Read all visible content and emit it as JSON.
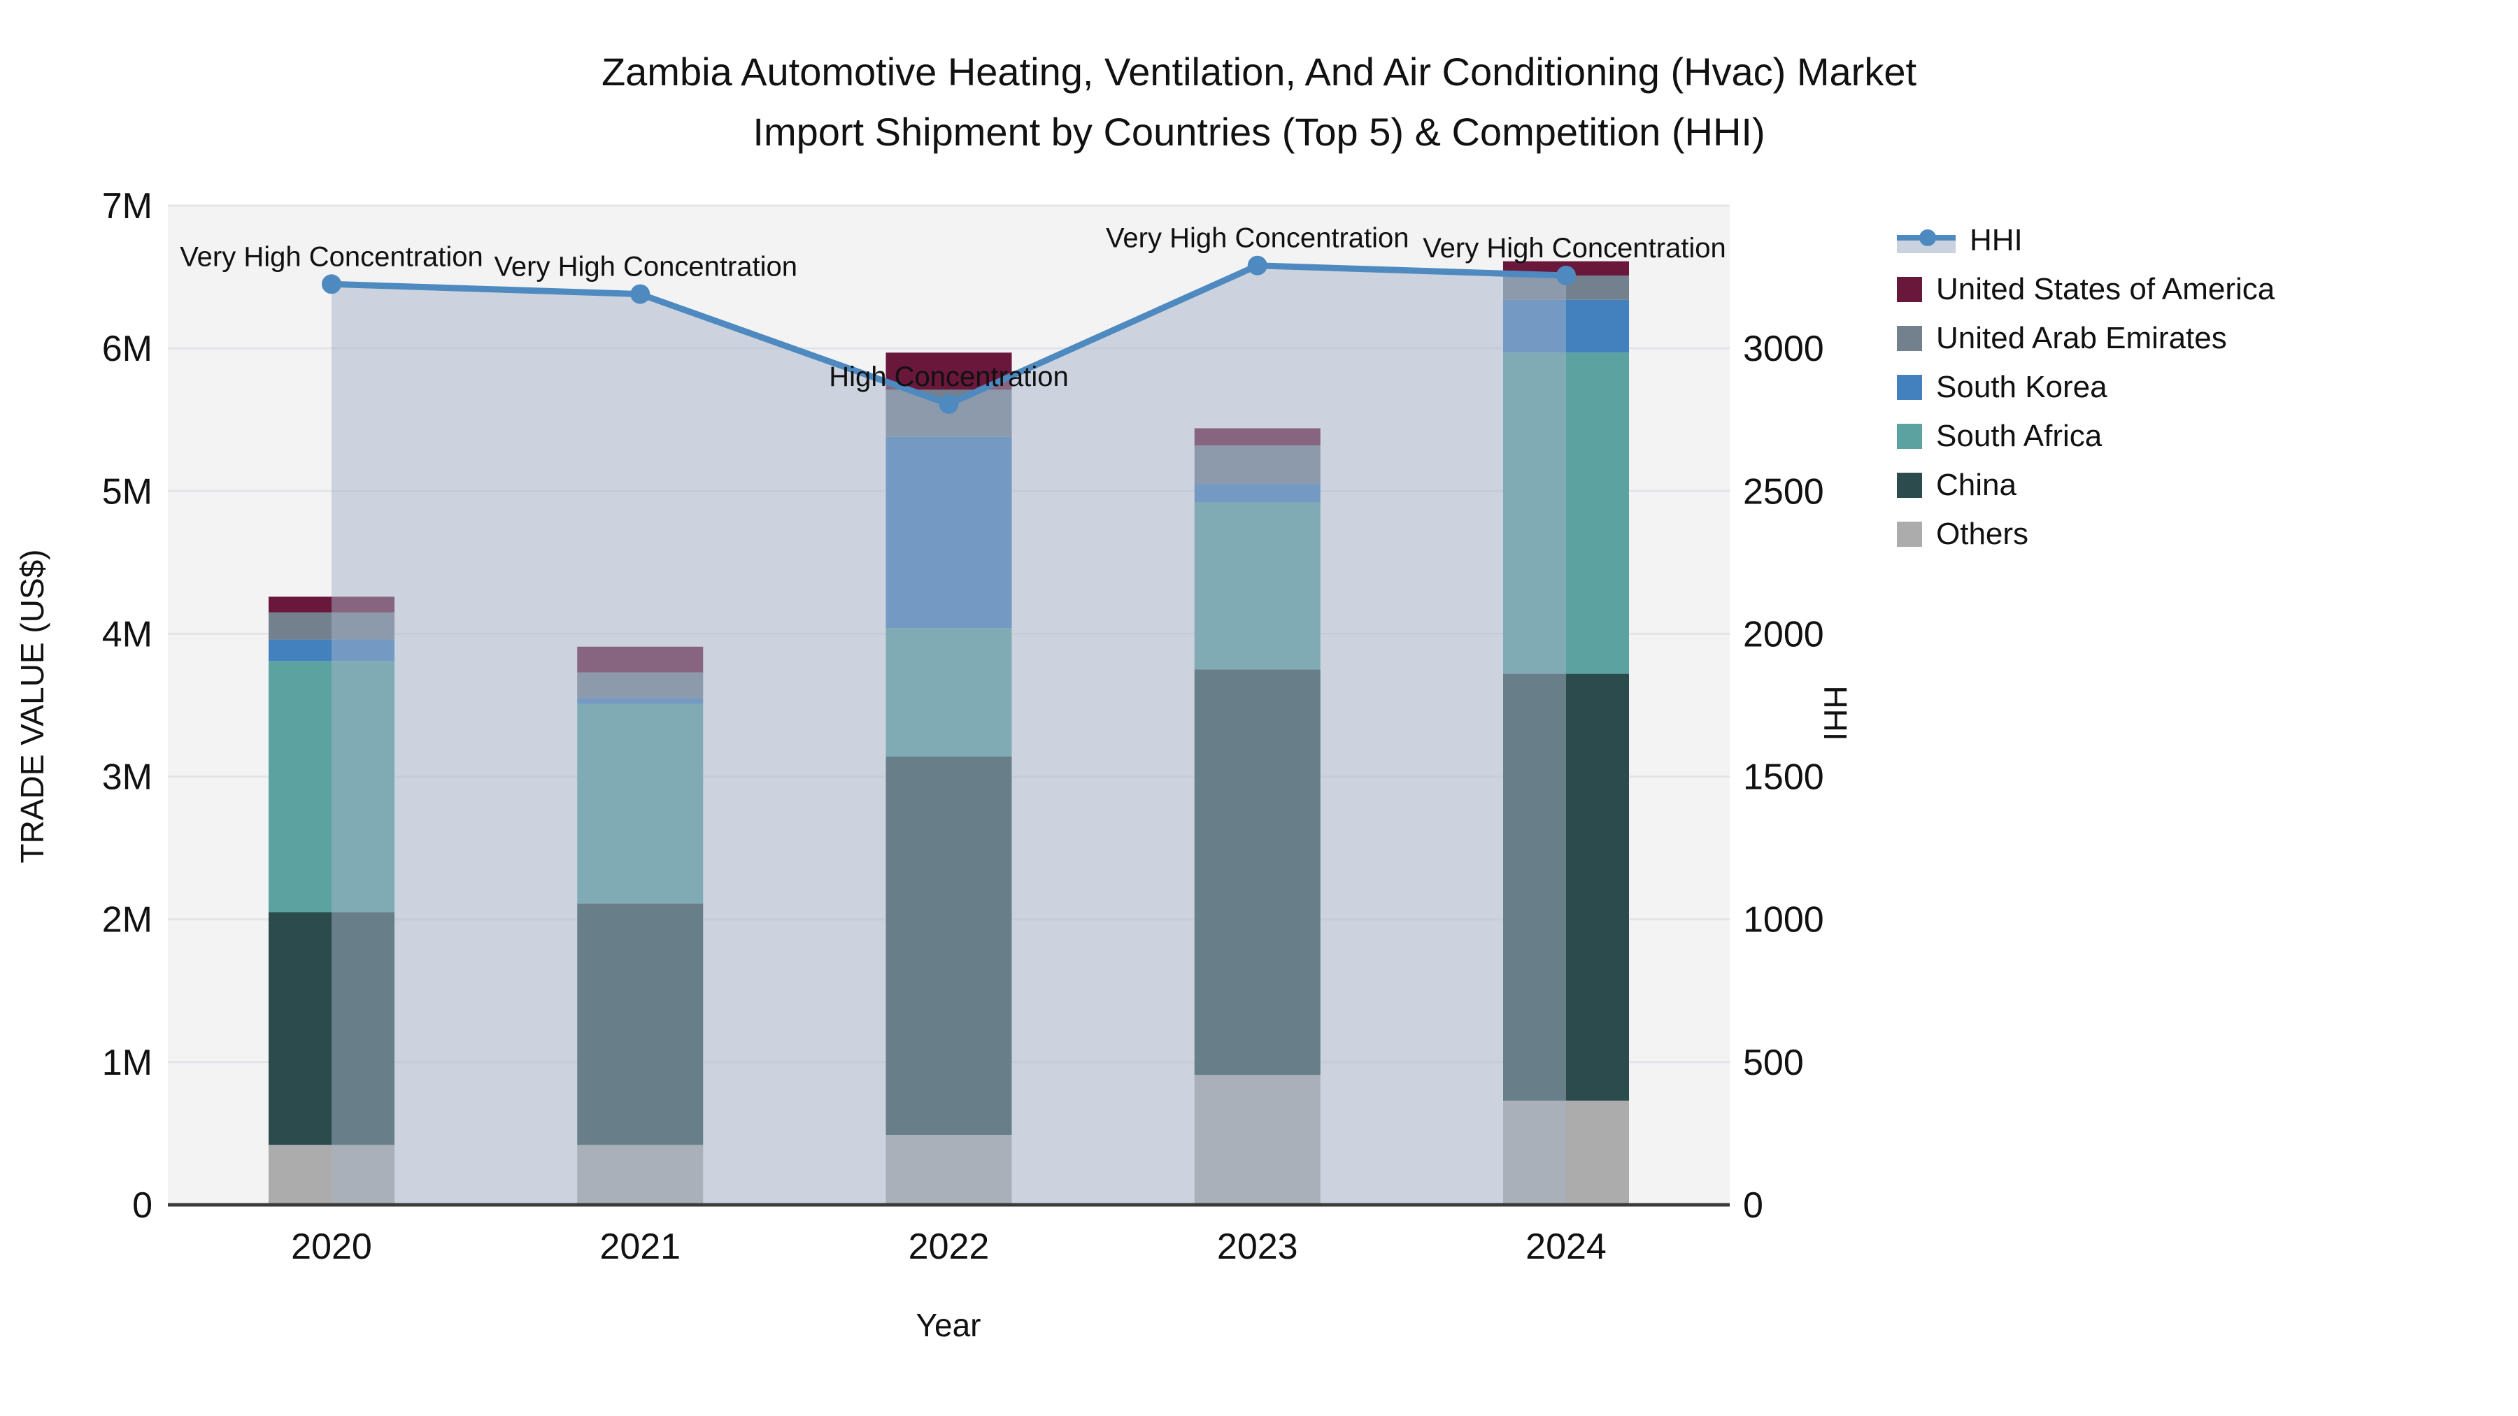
{
  "title": {
    "line1": "Zambia Automotive Heating, Ventilation, And Air Conditioning (Hvac) Market",
    "line2": "Import Shipment by Countries (Top 5) & Competition (HHI)"
  },
  "axes": {
    "x_label": "Year",
    "y_left_label": "TRADE VALUE (US$)",
    "y_right_label": "HHI",
    "y_left_ticks": [
      "0",
      "1M",
      "2M",
      "3M",
      "4M",
      "5M",
      "6M",
      "7M"
    ],
    "y_right_ticks": [
      "0",
      "500",
      "1000",
      "1500",
      "2000",
      "2500",
      "3000"
    ]
  },
  "colors": {
    "plot_background": "#f3f3f4",
    "gridline": "#e2e4e7",
    "axis_line": "#3a3a3a",
    "text": "#111111",
    "hhi_line": "#4e8ac0",
    "hhi_area": "rgba(166,180,200,0.5)"
  },
  "legend": [
    {
      "label": "HHI",
      "type": "line",
      "color": "#4e8ac0"
    },
    {
      "label": "United States of America",
      "type": "swatch",
      "color": "#69173a"
    },
    {
      "label": "United Arab Emirates",
      "type": "swatch",
      "color": "#73808e"
    },
    {
      "label": "South Korea",
      "type": "swatch",
      "color": "#4281be"
    },
    {
      "label": "South Africa",
      "type": "swatch",
      "color": "#5ca2a1"
    },
    {
      "label": "China",
      "type": "swatch",
      "color": "#2b4b4d"
    },
    {
      "label": "Others",
      "type": "swatch",
      "color": "#acacad"
    }
  ],
  "chart_data": {
    "type": "bar+line",
    "title": "Zambia Automotive Heating, Ventilation, And Air Conditioning (Hvac) Market Import Shipment by Countries (Top 5) & Competition (HHI)",
    "xlabel": "Year",
    "ylabel_left": "TRADE VALUE (US$)",
    "ylabel_right": "HHI",
    "categories": [
      "2020",
      "2021",
      "2022",
      "2023",
      "2024"
    ],
    "y_left_max_millions": 7,
    "y_right_max": 3500,
    "grid": true,
    "legend_position": "right",
    "bar_stack_order_note": "series listed bottom-to-top of stack; values in millions US$",
    "series": [
      {
        "name": "Others",
        "color": "#acacad",
        "values_musd": [
          0.42,
          0.42,
          0.49,
          0.91,
          0.73
        ]
      },
      {
        "name": "China",
        "color": "#2b4b4d",
        "values_musd": [
          1.63,
          1.69,
          2.65,
          2.84,
          2.99
        ]
      },
      {
        "name": "South Africa",
        "color": "#5ca2a1",
        "values_musd": [
          1.76,
          1.4,
          0.9,
          1.17,
          2.25
        ]
      },
      {
        "name": "South Korea",
        "color": "#4281be",
        "values_musd": [
          0.15,
          0.04,
          1.34,
          0.13,
          0.37
        ]
      },
      {
        "name": "United Arab Emirates",
        "color": "#73808e",
        "values_musd": [
          0.19,
          0.18,
          0.33,
          0.27,
          0.17
        ]
      },
      {
        "name": "United States of America",
        "color": "#69173a",
        "values_musd": [
          0.11,
          0.18,
          0.26,
          0.12,
          0.1
        ]
      }
    ],
    "totals_musd": [
      4.26,
      3.91,
      5.97,
      5.44,
      6.61
    ],
    "line": {
      "name": "HHI",
      "color": "#4e8ac0",
      "area_color": "rgba(166,180,200,0.5)",
      "values": [
        3225,
        3190,
        2805,
        3290,
        3255
      ]
    },
    "annotations": [
      {
        "label": "Very High Concentration",
        "x": "2020",
        "dx": 0
      },
      {
        "label": "Very High Concentration",
        "x": "2021",
        "dx": 8
      },
      {
        "label": "High Concentration",
        "x": "2022",
        "dx": 0
      },
      {
        "label": "Very High Concentration",
        "x": "2023",
        "dx": 0
      },
      {
        "label": "Very High Concentration",
        "x": "2024",
        "dx": 12
      }
    ]
  }
}
